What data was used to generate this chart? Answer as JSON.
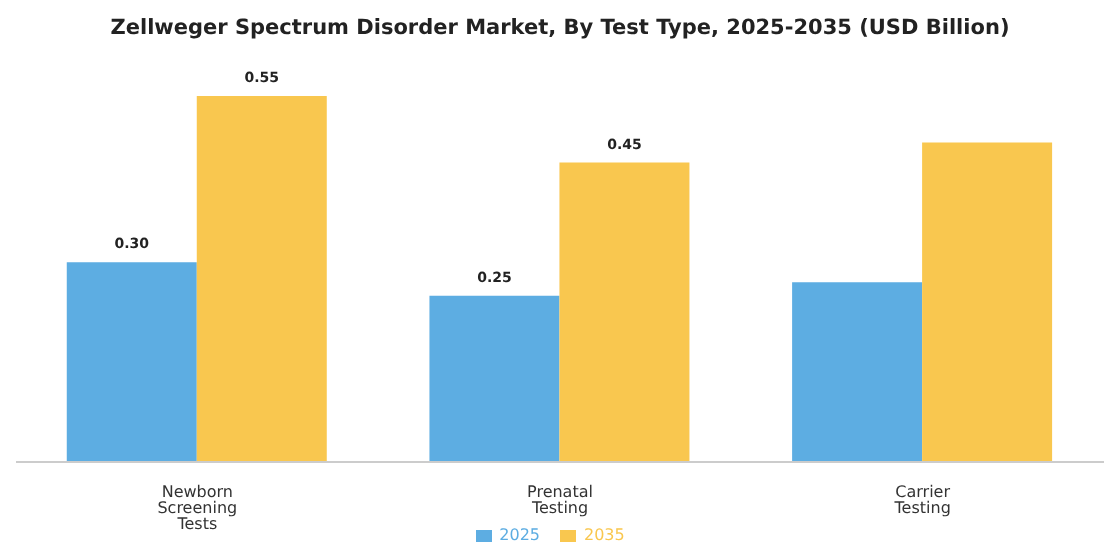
{
  "chart_data": {
    "type": "bar",
    "title": "Zellweger Spectrum Disorder Market, By Test Type, 2025-2035 (USD Billion)",
    "categories": [
      "Newborn Screening Tests",
      "Prenatal Testing",
      "Carrier Testing"
    ],
    "series": [
      {
        "name": "2025",
        "color": "#5dade2",
        "values": [
          0.3,
          0.25,
          0.27
        ],
        "value_labels": [
          "0.30",
          "0.25",
          null
        ]
      },
      {
        "name": "2035",
        "color": "#f9c74f",
        "values": [
          0.55,
          0.45,
          0.48
        ],
        "value_labels": [
          "0.55",
          "0.45",
          null
        ]
      }
    ],
    "grid": false,
    "legend": "bottom"
  }
}
